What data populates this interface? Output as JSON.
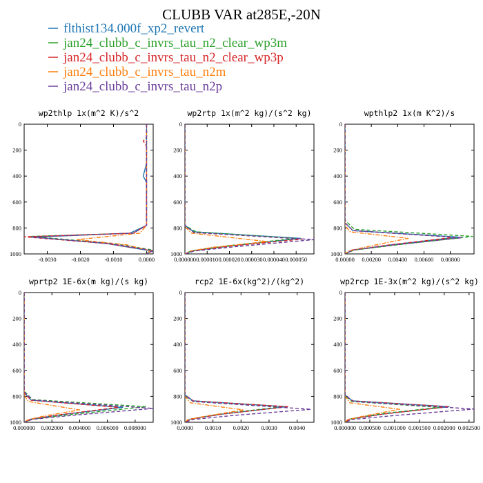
{
  "title": "CLUBB VAR at285E,-20N",
  "legend": [
    {
      "label": "flthist134.000f_xp2_revert",
      "color": "#1f77b4",
      "dash": "solid"
    },
    {
      "label": "jan24_clubb_c_invrs_tau_n2_clear_wp3m",
      "color": "#2ca02c",
      "dash": "dashed"
    },
    {
      "label": "jan24_clubb_c_invrs_tau_n2_clear_wp3p",
      "color": "#d62728",
      "dash": "dashed"
    },
    {
      "label": "jan24_clubb_c_invrs_tau_n2m",
      "color": "#ff7f0e",
      "dash": "dashdot"
    },
    {
      "label": "jan24_clubb_c_invrs_tau_n2p",
      "color": "#6a3d9a",
      "dash": "dashed"
    }
  ],
  "chart_data": [
    {
      "type": "line",
      "title": "wp2thlp   1x(m^2 K)/s^2",
      "xlim": [
        -0.0037,
        0.0002
      ],
      "ylim": [
        0,
        1000
      ],
      "y_reversed": true,
      "xticks": [
        -0.003,
        -0.002,
        -0.001,
        0.0
      ],
      "xtick_labels": [
        "-0.0030",
        "-0.0020",
        "-0.0010",
        "0.0000"
      ],
      "yticks": [
        0,
        200,
        400,
        600,
        800,
        1000
      ],
      "series": [
        {
          "name": "flthist134.000f_xp2_revert",
          "x": [
            0,
            0,
            -0.0001,
            0,
            0,
            -0.0005,
            -0.0034,
            -0.0012,
            0.0001,
            0
          ],
          "y": [
            0,
            300,
            400,
            450,
            780,
            840,
            870,
            920,
            975,
            1000
          ]
        },
        {
          "name": "jan24_clubb_c_invrs_tau_n2_clear_wp3m",
          "x": [
            0,
            0,
            0,
            -0.0004,
            -0.0035,
            -0.001,
            0.0002,
            0
          ],
          "y": [
            0,
            300,
            780,
            840,
            865,
            920,
            970,
            1000
          ]
        },
        {
          "name": "jan24_clubb_c_invrs_tau_n2_clear_wp3p",
          "x": [
            0,
            0,
            -0.0001,
            0,
            0,
            -0.0004,
            -0.0037,
            -0.0012,
            0.0002,
            0
          ],
          "y": [
            0,
            100,
            130,
            170,
            780,
            840,
            868,
            920,
            975,
            1000
          ]
        },
        {
          "name": "jan24_clubb_c_invrs_tau_n2m",
          "x": [
            0,
            0,
            -0.0002,
            -0.0021,
            -0.0006,
            0.0001,
            0
          ],
          "y": [
            0,
            780,
            840,
            890,
            930,
            975,
            1000
          ]
        },
        {
          "name": "jan24_clubb_c_invrs_tau_n2p",
          "x": [
            0,
            0,
            -0.0004,
            -0.0035,
            -0.0011,
            0.0002,
            0
          ],
          "y": [
            0,
            780,
            840,
            870,
            920,
            975,
            1000
          ]
        }
      ]
    },
    {
      "type": "line",
      "title": "wp2rtp   1x(m^2 kg)/(s^2 kg)",
      "xlim": [
        0,
        5.8e-05
      ],
      "ylim": [
        0,
        1000
      ],
      "y_reversed": true,
      "xticks": [
        0,
        1e-05,
        2e-05,
        3e-05,
        4e-05,
        5e-05
      ],
      "xtick_labels": [
        "0.000000",
        "0.000010",
        "0.000020",
        "0.000030",
        "0.000040",
        "0.000050"
      ],
      "yticks": [
        0,
        200,
        400,
        600,
        800,
        1000
      ],
      "series": [
        {
          "name": "flthist134.000f_xp2_revert",
          "x": [
            0,
            0,
            4e-06,
            5.2e-05,
            2e-05,
            4e-06,
            0
          ],
          "y": [
            0,
            780,
            830,
            880,
            940,
            975,
            1000
          ]
        },
        {
          "name": "jan24_clubb_c_invrs_tau_n2_clear_wp3m",
          "x": [
            0,
            0,
            5e-06,
            5e-05,
            1.8e-05,
            3e-06,
            0
          ],
          "y": [
            0,
            780,
            830,
            880,
            940,
            975,
            1000
          ]
        },
        {
          "name": "jan24_clubb_c_invrs_tau_n2_clear_wp3p",
          "x": [
            0,
            0,
            4e-06,
            5.3e-05,
            2e-05,
            4e-06,
            0
          ],
          "y": [
            0,
            780,
            835,
            885,
            940,
            975,
            1000
          ]
        },
        {
          "name": "jan24_clubb_c_invrs_tau_n2m",
          "x": [
            0,
            0,
            3e-06,
            3.7e-05,
            1.2e-05,
            2e-06,
            0
          ],
          "y": [
            0,
            790,
            840,
            905,
            950,
            980,
            1000
          ]
        },
        {
          "name": "jan24_clubb_c_invrs_tau_n2p",
          "x": [
            0,
            0,
            4e-06,
            5.8e-05,
            2.2e-05,
            4e-06,
            0
          ],
          "y": [
            0,
            780,
            835,
            890,
            945,
            978,
            1000
          ]
        }
      ]
    },
    {
      "type": "line",
      "title": "wpthlp2   1x(m K^2)/s",
      "xlim": [
        0,
        0.0098
      ],
      "ylim": [
        0,
        1000
      ],
      "y_reversed": true,
      "xticks": [
        0,
        0.002,
        0.004,
        0.006,
        0.008
      ],
      "xtick_labels": [
        "0.00000",
        "0.00200",
        "0.00400",
        "0.00600",
        "0.00800"
      ],
      "yticks": [
        0,
        200,
        400,
        600,
        800,
        1000
      ],
      "series": [
        {
          "name": "flthist134.000f_xp2_revert",
          "x": [
            0,
            0,
            0.0006,
            0.0086,
            0.0035,
            0.0006,
            0
          ],
          "y": [
            0,
            760,
            820,
            870,
            930,
            970,
            1000
          ]
        },
        {
          "name": "jan24_clubb_c_invrs_tau_n2_clear_wp3m",
          "x": [
            0,
            0,
            0.0007,
            0.0097,
            0.004,
            0.0007,
            0
          ],
          "y": [
            0,
            740,
            810,
            865,
            930,
            970,
            1000
          ]
        },
        {
          "name": "jan24_clubb_c_invrs_tau_n2_clear_wp3p",
          "x": [
            0,
            0,
            0.0006,
            0.0083,
            0.0034,
            0.0006,
            0
          ],
          "y": [
            0,
            760,
            820,
            872,
            930,
            970,
            1000
          ]
        },
        {
          "name": "jan24_clubb_c_invrs_tau_n2m",
          "x": [
            0,
            0,
            0.0004,
            0.0048,
            0.0019,
            0.0003,
            0
          ],
          "y": [
            0,
            780,
            830,
            880,
            940,
            975,
            1000
          ]
        },
        {
          "name": "jan24_clubb_c_invrs_tau_n2p",
          "x": [
            0,
            0,
            0.0006,
            0.0089,
            0.0036,
            0.0006,
            0
          ],
          "y": [
            0,
            760,
            820,
            875,
            932,
            970,
            1000
          ]
        }
      ]
    },
    {
      "type": "line",
      "title": "wprtp2   1E-6x(m kg)/(s kg)",
      "xlim": [
        0,
        0.0093
      ],
      "ylim": [
        0,
        1000
      ],
      "y_reversed": true,
      "xticks": [
        0,
        0.002,
        0.004,
        0.006,
        0.008
      ],
      "xtick_labels": [
        "0.000000",
        "0.002000",
        "0.004000",
        "0.006000",
        "0.008000"
      ],
      "yticks": [
        0,
        200,
        400,
        600,
        800,
        1000
      ],
      "series": [
        {
          "name": "flthist134.000f_xp2_revert",
          "x": [
            0,
            0,
            0.0005,
            0.0071,
            0.0028,
            0.0005,
            0
          ],
          "y": [
            0,
            770,
            830,
            885,
            940,
            975,
            1000
          ]
        },
        {
          "name": "jan24_clubb_c_invrs_tau_n2_clear_wp3m",
          "x": [
            0,
            0,
            0.0006,
            0.0088,
            0.0034,
            0.0006,
            0
          ],
          "y": [
            0,
            760,
            825,
            880,
            940,
            975,
            1000
          ]
        },
        {
          "name": "jan24_clubb_c_invrs_tau_n2_clear_wp3p",
          "x": [
            0,
            0,
            0.0005,
            0.0068,
            0.0027,
            0.0005,
            0
          ],
          "y": [
            0,
            775,
            830,
            885,
            940,
            975,
            1000
          ]
        },
        {
          "name": "jan24_clubb_c_invrs_tau_n2m",
          "x": [
            0,
            0,
            0.0003,
            0.004,
            0.0015,
            0.0003,
            0
          ],
          "y": [
            0,
            790,
            840,
            905,
            950,
            980,
            1000
          ]
        },
        {
          "name": "jan24_clubb_c_invrs_tau_n2p",
          "x": [
            0,
            0,
            0.0006,
            0.0093,
            0.0036,
            0.0006,
            0
          ],
          "y": [
            0,
            765,
            828,
            893,
            945,
            977,
            1000
          ]
        }
      ]
    },
    {
      "type": "line",
      "title": "rcp2   1E-6x(kg^2)/(kg^2)",
      "xlim": [
        0,
        0.0046
      ],
      "ylim": [
        0,
        1000
      ],
      "y_reversed": true,
      "xticks": [
        0,
        0.001,
        0.002,
        0.003,
        0.004
      ],
      "xtick_labels": [
        "0.0000",
        "0.0010",
        "0.0020",
        "0.0030",
        "0.0040"
      ],
      "yticks": [
        0,
        200,
        400,
        600,
        800,
        1000
      ],
      "series": [
        {
          "name": "flthist134.000f_xp2_revert",
          "x": [
            0,
            0,
            0.0003,
            0.0036,
            0.0014,
            0.0002,
            0
          ],
          "y": [
            0,
            790,
            835,
            880,
            935,
            975,
            1000
          ]
        },
        {
          "name": "jan24_clubb_c_invrs_tau_n2_clear_wp3m",
          "x": [
            0,
            0,
            0.0003,
            0.0034,
            0.0013,
            0.0002,
            0
          ],
          "y": [
            0,
            795,
            840,
            882,
            935,
            975,
            1000
          ]
        },
        {
          "name": "jan24_clubb_c_invrs_tau_n2_clear_wp3p",
          "x": [
            0,
            0,
            0.0003,
            0.0037,
            0.0014,
            0.0002,
            0
          ],
          "y": [
            0,
            790,
            835,
            880,
            935,
            975,
            1000
          ]
        },
        {
          "name": "jan24_clubb_c_invrs_tau_n2m",
          "x": [
            0,
            0,
            0.0002,
            0.0021,
            0.0008,
            0.0001,
            0
          ],
          "y": [
            0,
            800,
            850,
            905,
            950,
            980,
            1000
          ]
        },
        {
          "name": "jan24_clubb_c_invrs_tau_n2p",
          "x": [
            0,
            0,
            0.0003,
            0.0045,
            0.0017,
            0.0003,
            0
          ],
          "y": [
            0,
            790,
            840,
            900,
            948,
            978,
            1000
          ]
        }
      ]
    },
    {
      "type": "line",
      "title": "wp2rcp   1E-3x(m^2 kg)/(s^2 kg)",
      "xlim": [
        0,
        0.0026
      ],
      "ylim": [
        0,
        1000
      ],
      "y_reversed": true,
      "xticks": [
        0,
        0.0005,
        0.001,
        0.0015,
        0.002,
        0.0025
      ],
      "xtick_labels": [
        "0.000000",
        "0.000500",
        "0.001000",
        "0.001500",
        "0.002000",
        "0.002500"
      ],
      "yticks": [
        0,
        200,
        400,
        600,
        800,
        1000
      ],
      "series": [
        {
          "name": "flthist134.000f_xp2_revert",
          "x": [
            0,
            0,
            0.00015,
            0.0021,
            0.0008,
            0.0001,
            0
          ],
          "y": [
            0,
            790,
            835,
            880,
            935,
            975,
            1000
          ]
        },
        {
          "name": "jan24_clubb_c_invrs_tau_n2_clear_wp3m",
          "x": [
            0,
            0,
            0.00014,
            0.0019,
            0.0007,
            0.0001,
            0
          ],
          "y": [
            0,
            795,
            840,
            885,
            935,
            975,
            1000
          ]
        },
        {
          "name": "jan24_clubb_c_invrs_tau_n2_clear_wp3p",
          "x": [
            0,
            0,
            0.00015,
            0.0021,
            0.0008,
            0.0001,
            0
          ],
          "y": [
            0,
            790,
            835,
            880,
            935,
            975,
            1000
          ]
        },
        {
          "name": "jan24_clubb_c_invrs_tau_n2m",
          "x": [
            0,
            0,
            0.0001,
            0.0011,
            0.0004,
            5e-05,
            0
          ],
          "y": [
            0,
            800,
            850,
            900,
            950,
            980,
            1000
          ]
        },
        {
          "name": "jan24_clubb_c_invrs_tau_n2p",
          "x": [
            0,
            0,
            0.00018,
            0.0026,
            0.001,
            0.00015,
            0
          ],
          "y": [
            0,
            790,
            840,
            898,
            948,
            978,
            1000
          ]
        }
      ]
    }
  ]
}
